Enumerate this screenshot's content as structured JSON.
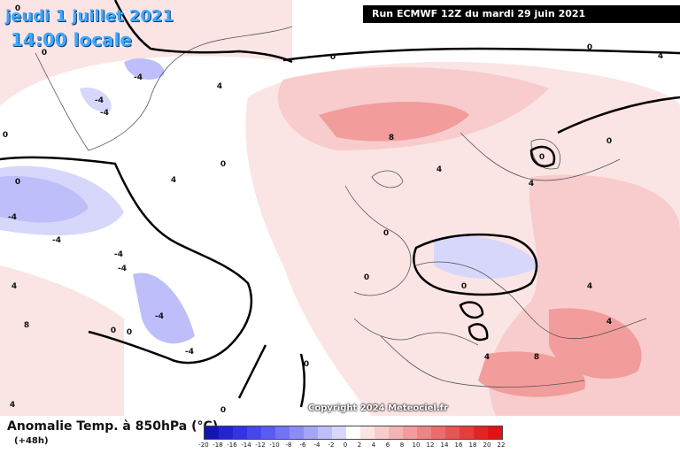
{
  "header": {
    "date": "jeudi 1 juillet 2021",
    "local_time": "14:00 locale",
    "run": "Run ECMWF 12Z du mardi 29 juin 2021"
  },
  "copyright": "Copyright 2024 Meteociel.fr",
  "legend": {
    "title": "Anomalie Temp. à 850hPa (°C)",
    "lead": "(+48h)",
    "levels": [
      "-20",
      "-18",
      "-16",
      "-14",
      "-12",
      "-10",
      "-8",
      "-6",
      "-4",
      "-2",
      "0",
      "2",
      "4",
      "6",
      "8",
      "10",
      "12",
      "14",
      "16",
      "18",
      "20",
      "22"
    ],
    "colors": [
      "#1414b4",
      "#2323d2",
      "#3232e6",
      "#4646f0",
      "#5a5af5",
      "#7373f5",
      "#8c8cf5",
      "#a5a5f8",
      "#bebefa",
      "#d7d7fc",
      "#ffffff",
      "#fbe4e4",
      "#f8cccc",
      "#f5b4b4",
      "#f29c9c",
      "#ef8484",
      "#ec6c6c",
      "#e95454",
      "#e63c3c",
      "#e32424",
      "#e01414"
    ]
  },
  "contour_labels": [
    "0",
    "0",
    "0",
    "0",
    "4",
    "-4",
    "-4",
    "-4",
    "0",
    "4",
    "8",
    "0",
    "0",
    "-4",
    "-4",
    "4",
    "-4",
    "-4",
    "-4",
    "0",
    "0",
    "0",
    "0",
    "4",
    "8",
    "4",
    "4",
    "0",
    "0",
    "0",
    "-4",
    "4",
    "8",
    "4",
    "0",
    "0",
    "4",
    "4"
  ]
}
